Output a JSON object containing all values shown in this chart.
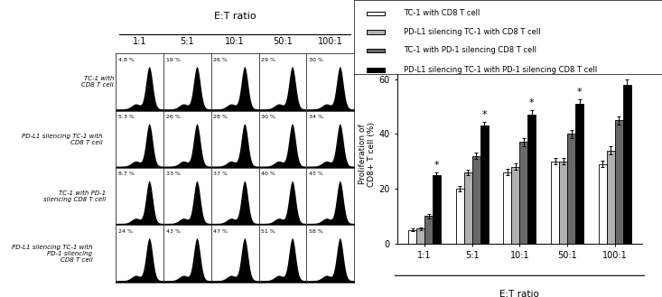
{
  "et_ratios": [
    "1:1",
    "5:1",
    "10:1",
    "50:1",
    "100:1"
  ],
  "bar_data": {
    "TC1_CD8": [
      5.0,
      20.0,
      26.0,
      30.0,
      29.0
    ],
    "PDL1sil_CD8": [
      5.5,
      26.0,
      28.0,
      30.0,
      34.0
    ],
    "TC1_PD1sil": [
      10.0,
      32.0,
      37.0,
      40.0,
      45.0
    ],
    "PDL1sil_PD1sil": [
      25.0,
      43.0,
      47.0,
      51.0,
      58.0
    ]
  },
  "bar_errors": {
    "TC1_CD8": [
      0.5,
      1.0,
      1.2,
      1.2,
      1.2
    ],
    "PDL1sil_CD8": [
      0.5,
      1.0,
      1.2,
      1.2,
      1.5
    ],
    "TC1_PD1sil": [
      0.8,
      1.2,
      1.5,
      1.5,
      1.5
    ],
    "PDL1sil_PD1sil": [
      1.0,
      1.5,
      1.5,
      1.5,
      1.8
    ]
  },
  "bar_colors": [
    "#ffffff",
    "#b0b0b0",
    "#686868",
    "#000000"
  ],
  "legend_labels": [
    "TC-1 with CD8 T cell",
    "PD-L1 silencing TC-1 with CD8 T cell",
    "TC-1 with PD-1 silencing CD8 T cell",
    "PD-L1 silencing TC-1 with PD-1 silencing CD8 T cell"
  ],
  "ylabel": "Proliferation of\nCD8+ T cell (%)",
  "xlabel": "E:T ratio",
  "ylim": [
    0,
    65
  ],
  "yticks": [
    0,
    20,
    40,
    60
  ],
  "flow_percentages": [
    [
      "4.8 %",
      "19 %",
      "26 %",
      "29 %",
      "30 %"
    ],
    [
      "5.3 %",
      "26 %",
      "28 %",
      "30 %",
      "34 %"
    ],
    [
      "8.7 %",
      "33 %",
      "37 %",
      "40 %",
      "45 %"
    ],
    [
      "24 %",
      "43 %",
      "47 %",
      "51 %",
      "58 %"
    ]
  ],
  "row_labels": [
    "TC-1 with\nCD8 T cell",
    "PD-L1 silencing TC-1 with\nCD8 T cell",
    "TC-1 with PD-1\nsilencing CD8 T cell",
    "PD-L1 silencing TC-1 with\nPD-1 silencing\nCD8 T cell"
  ],
  "col_labels": [
    "1:1",
    "5:1",
    "10:1",
    "50:1",
    "100:1"
  ],
  "top_label": "E:T ratio",
  "star_on_group": [
    true,
    true,
    true,
    true,
    true
  ]
}
